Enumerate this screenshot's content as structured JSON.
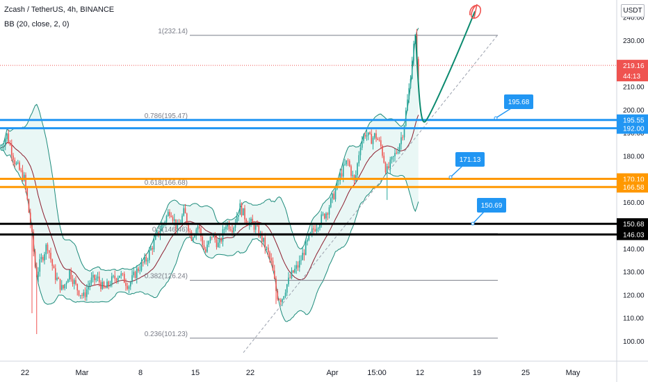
{
  "header": {
    "title": "Zcash / TetherUS, 4h, BINANCE",
    "indicator": "BB (20, close, 2, 0)",
    "currency": "USDT"
  },
  "colors": {
    "up": "#26a69a",
    "down": "#ef5350",
    "band": "#1b8a7a",
    "basis": "#8b1a2b",
    "blue": "#2196f3",
    "orange": "#ff9800",
    "black": "#000000",
    "fib": "#787b86",
    "projection": "#0b8a6f"
  },
  "chart_data": {
    "type": "candlestick",
    "y_axis": {
      "min": 96,
      "max": 242,
      "ticks": [
        100,
        110,
        120,
        130,
        140,
        150,
        160,
        170,
        180,
        190,
        200,
        210,
        220,
        230,
        240
      ],
      "tick_labels": [
        "100.00",
        "110.00",
        "120.00",
        "130.00",
        "140.00",
        "150.00",
        "160.00",
        "170.00",
        "180.00",
        "190.00",
        "200.00",
        "210.00",
        "220.00",
        "230.00",
        "240.00"
      ]
    },
    "x_axis": {
      "labels": [
        "22",
        "Mar",
        "8",
        "15",
        "22",
        "Apr",
        "15:00",
        "12",
        "19",
        "25",
        "May"
      ]
    },
    "price_series_anchors": [
      [
        0,
        183
      ],
      [
        10,
        189
      ],
      [
        22,
        177
      ],
      [
        35,
        170
      ],
      [
        45,
        148
      ],
      [
        52,
        128
      ],
      [
        58,
        134
      ],
      [
        68,
        142
      ],
      [
        78,
        129
      ],
      [
        90,
        122
      ],
      [
        100,
        130
      ],
      [
        110,
        123
      ],
      [
        120,
        119
      ],
      [
        130,
        126
      ],
      [
        140,
        127
      ],
      [
        150,
        122
      ],
      [
        160,
        126
      ],
      [
        172,
        129
      ],
      [
        185,
        124
      ],
      [
        198,
        131
      ],
      [
        210,
        135
      ],
      [
        222,
        143
      ],
      [
        235,
        151
      ],
      [
        245,
        157
      ],
      [
        255,
        148
      ],
      [
        265,
        156
      ],
      [
        275,
        145
      ],
      [
        285,
        150
      ],
      [
        295,
        138
      ],
      [
        305,
        146
      ],
      [
        315,
        141
      ],
      [
        325,
        151
      ],
      [
        335,
        149
      ],
      [
        345,
        158
      ],
      [
        355,
        152
      ],
      [
        365,
        150
      ],
      [
        372,
        147
      ],
      [
        380,
        142
      ],
      [
        390,
        134
      ],
      [
        398,
        120
      ],
      [
        405,
        118
      ],
      [
        412,
        124
      ],
      [
        420,
        129
      ],
      [
        430,
        133
      ],
      [
        440,
        141
      ],
      [
        450,
        148
      ],
      [
        460,
        152
      ],
      [
        470,
        156
      ],
      [
        480,
        163
      ],
      [
        490,
        172
      ],
      [
        500,
        178
      ],
      [
        510,
        168
      ],
      [
        518,
        185
      ],
      [
        525,
        190
      ],
      [
        533,
        187
      ],
      [
        540,
        189
      ],
      [
        548,
        184
      ],
      [
        556,
        173
      ],
      [
        564,
        178
      ],
      [
        572,
        183
      ],
      [
        580,
        191
      ],
      [
        588,
        208
      ],
      [
        594,
        226
      ],
      [
        598,
        232
      ],
      [
        602,
        210
      ]
    ],
    "bollinger": {
      "period": 20,
      "stddev": 2
    },
    "fibonacci": [
      {
        "level": "1",
        "label": "1(232.14)",
        "price": 232.14
      },
      {
        "level": "0.786",
        "label": "0.786(195.47)",
        "price": 195.47
      },
      {
        "level": "0.618",
        "label": "0.618(166.68)",
        "price": 166.68
      },
      {
        "level": "0.5",
        "label": "0.5(146.46)",
        "price": 146.46
      },
      {
        "level": "0.382",
        "label": "0.382(126.24)",
        "price": 126.24
      },
      {
        "level": "0.236",
        "label": "0.236(101.23)",
        "price": 101.23
      }
    ],
    "horizontal_levels": [
      {
        "price": 195.55,
        "label": "195.55",
        "color": "#2196f3"
      },
      {
        "price": 192.0,
        "label": "192.00",
        "color": "#2196f3"
      },
      {
        "price": 170.1,
        "label": "170.10",
        "color": "#ff9800"
      },
      {
        "price": 166.58,
        "label": "166.58",
        "color": "#ff9800"
      },
      {
        "price": 150.68,
        "label": "150.68",
        "color": "#000000"
      },
      {
        "price": 146.03,
        "label": "146.03",
        "color": "#000000"
      }
    ],
    "callouts": [
      {
        "label": "195.68",
        "price": 195.68
      },
      {
        "label": "171.13",
        "price": 171.13
      },
      {
        "label": "150.69",
        "price": 150.69
      }
    ],
    "current_price": {
      "value": 219.16,
      "label": "219.16",
      "countdown": "44:13"
    },
    "projection_path": [
      [
        602,
        202
      ],
      [
        612,
        195
      ],
      [
        625,
        200
      ],
      [
        645,
        215
      ],
      [
        665,
        232
      ],
      [
        683,
        243
      ]
    ],
    "trendline": [
      [
        350,
        95
      ],
      [
        715,
        232
      ]
    ]
  }
}
